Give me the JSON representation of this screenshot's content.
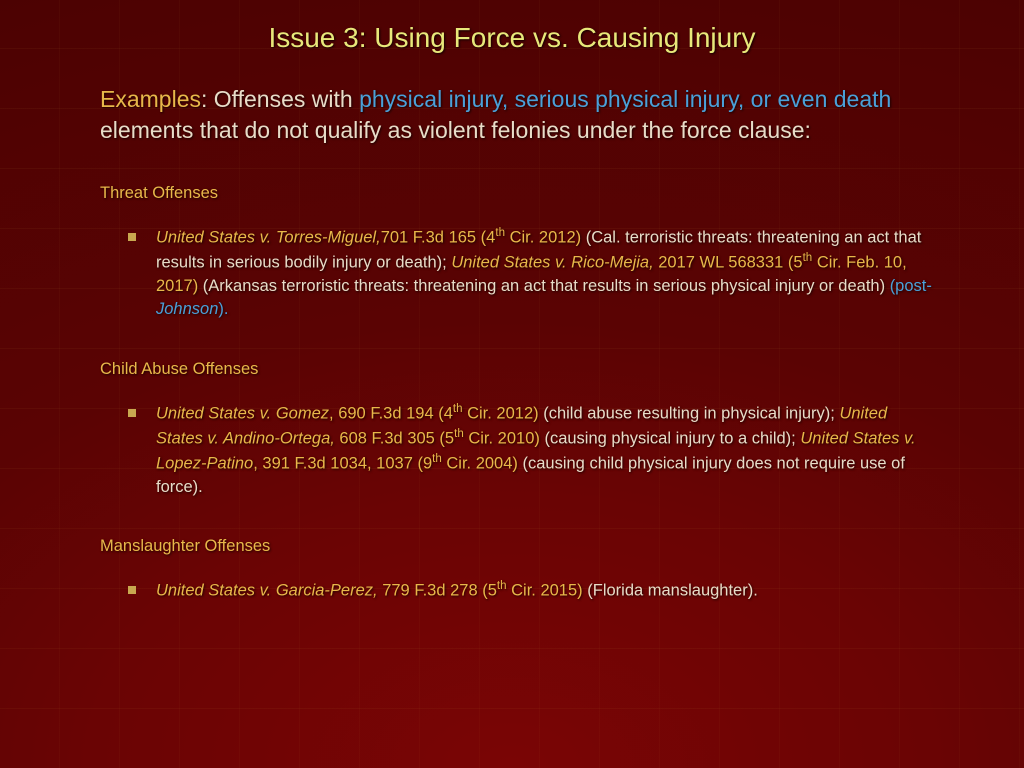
{
  "title": "Issue 3: Using Force vs. Causing Injury",
  "intro": {
    "label": "Examples",
    "pre": ":  Offenses with ",
    "highlight": "physical injury, serious physical injury, or even death",
    "post": " elements that do not qualify as violent felonies under the force clause:"
  },
  "sections": [
    {
      "heading": "Threat Offenses",
      "items": [
        {
          "runs": [
            {
              "text": "United States v. Torres-Miguel,",
              "cls": "case-ital"
            },
            {
              "text": "701 F.3d 165 (4",
              "cls": "case-cite"
            },
            {
              "text": "th",
              "cls": "case-cite",
              "sup": true
            },
            {
              "text": " Cir. 2012)",
              "cls": "case-cite"
            },
            {
              "text": " (Cal. terroristic threats: threatening an act that results in serious bodily injury or death); "
            },
            {
              "text": "United States v. Rico-Mejia,",
              "cls": "case-ital"
            },
            {
              "text": " 2017 WL 568331 (5",
              "cls": "case-cite"
            },
            {
              "text": "th",
              "cls": "case-cite",
              "sup": true
            },
            {
              "text": " Cir. Feb. 10, 2017)",
              "cls": "case-cite"
            },
            {
              "text": " (Arkansas terroristic threats: threatening an act that results in serious physical injury or death) "
            },
            {
              "text": "(post-",
              "cls": "cyan"
            },
            {
              "text": "Johnson",
              "cls": "cyan-ital"
            },
            {
              "text": ").",
              "cls": "cyan"
            }
          ]
        }
      ]
    },
    {
      "heading": "Child Abuse Offenses",
      "items": [
        {
          "runs": [
            {
              "text": "United States v. Gomez",
              "cls": "case-ital"
            },
            {
              "text": ", 690 F.3d 194 (4",
              "cls": "case-cite"
            },
            {
              "text": "th",
              "cls": "case-cite",
              "sup": true
            },
            {
              "text": " Cir. 2012)",
              "cls": "case-cite"
            },
            {
              "text": " (child abuse resulting in physical injury); "
            },
            {
              "text": "United States v. Andino-Ortega,",
              "cls": "case-ital"
            },
            {
              "text": " 608 F.3d 305 (5",
              "cls": "case-cite"
            },
            {
              "text": "th",
              "cls": "case-cite",
              "sup": true
            },
            {
              "text": " Cir. 2010)",
              "cls": "case-cite"
            },
            {
              "text": " (causing physical injury to a child); "
            },
            {
              "text": "United States v. Lopez-Patino",
              "cls": "case-ital"
            },
            {
              "text": ", 391 F.3d 1034, 1037 (9",
              "cls": "case-cite"
            },
            {
              "text": "th",
              "cls": "case-cite",
              "sup": true
            },
            {
              "text": " Cir. 2004)",
              "cls": "case-cite"
            },
            {
              "text": " (causing child physical injury does not require use of force)."
            }
          ]
        }
      ]
    },
    {
      "heading": "Manslaughter Offenses",
      "items": [
        {
          "runs": [
            {
              "text": "United States v. Garcia-Perez,",
              "cls": "case-ital"
            },
            {
              "text": " 779 F.3d 278 (5",
              "cls": "case-cite"
            },
            {
              "text": "th",
              "cls": "case-cite",
              "sup": true
            },
            {
              "text": " Cir. 2015)",
              "cls": "case-cite"
            },
            {
              "text": " (Florida manslaughter)."
            }
          ]
        }
      ]
    }
  ],
  "colors": {
    "title": "#e8e87a",
    "body": "#e8dcc8",
    "accent": "#e8b84a",
    "cyan": "#4aa0d8",
    "bullet": "#c8a850",
    "bg_inner": "#7a0505",
    "bg_outer": "#4a0202"
  },
  "typography": {
    "title_fontsize": 28,
    "intro_fontsize": 23,
    "body_fontsize": 16.5,
    "font_family": "Verdana"
  }
}
